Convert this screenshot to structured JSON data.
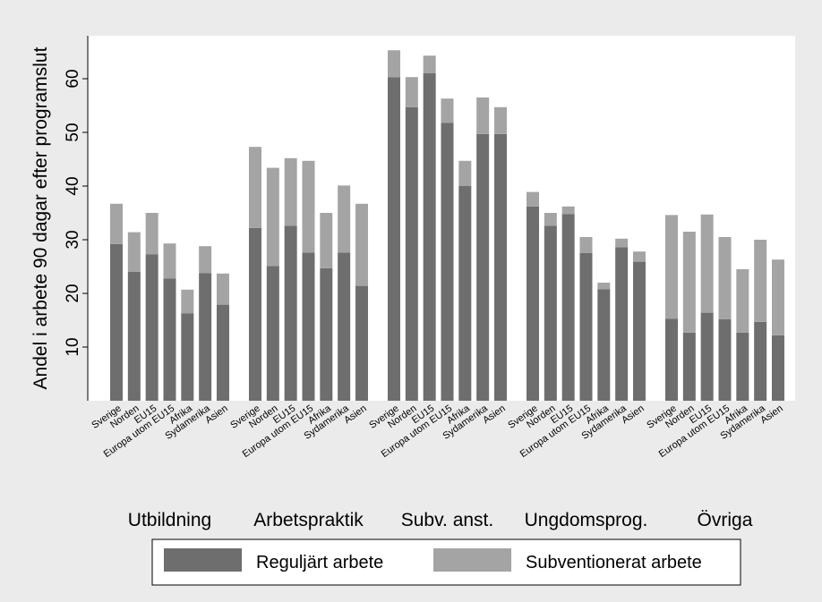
{
  "chart_data": {
    "type": "bar",
    "stacked": true,
    "title": "",
    "ylabel": "Andel i arbete 90 dagar efter programslut",
    "xlabel": "",
    "ylim": [
      0,
      68
    ],
    "yticks": [
      10,
      20,
      30,
      40,
      50,
      60
    ],
    "grid": false,
    "legend_position": "bottom",
    "categories": [
      "Sverige",
      "Norden",
      "EU15",
      "Europa utom EU15",
      "Afrika",
      "Sydamerika",
      "Asien"
    ],
    "groups": [
      {
        "label": "Utbildning",
        "regular": [
          29.2,
          24.0,
          27.3,
          22.8,
          16.3,
          23.8,
          17.9
        ],
        "total": [
          36.7,
          31.4,
          35.0,
          29.3,
          20.7,
          28.8,
          23.7
        ]
      },
      {
        "label": "Arbetspraktik",
        "regular": [
          32.2,
          25.1,
          32.6,
          27.6,
          24.7,
          27.6,
          21.4
        ],
        "total": [
          47.3,
          43.4,
          45.2,
          44.7,
          35.0,
          40.1,
          36.7
        ]
      },
      {
        "label": "Subv. anst.",
        "regular": [
          60.3,
          54.7,
          61.0,
          51.8,
          40.0,
          49.7,
          49.7
        ],
        "total": [
          65.3,
          60.3,
          64.3,
          56.3,
          44.7,
          56.5,
          54.7
        ]
      },
      {
        "label": "Ungdomsprog.",
        "regular": [
          36.2,
          32.6,
          34.8,
          27.5,
          20.8,
          28.6,
          25.9
        ],
        "total": [
          38.9,
          35.0,
          36.2,
          30.5,
          22.0,
          30.2,
          27.8
        ]
      },
      {
        "label": "Övriga",
        "regular": [
          15.3,
          12.7,
          16.4,
          15.2,
          12.7,
          14.7,
          12.2
        ],
        "total": [
          34.6,
          31.5,
          34.7,
          30.5,
          24.5,
          30.0,
          26.3
        ]
      }
    ],
    "series": [
      {
        "name": "Reguljärt arbete",
        "color": "#6e6e6e"
      },
      {
        "name": "Subventionerat arbete",
        "color": "#a4a4a4"
      }
    ]
  }
}
